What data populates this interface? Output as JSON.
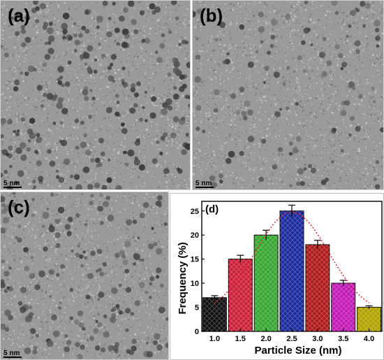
{
  "panels": {
    "a": {
      "label": "(a)",
      "scale_label": "5 nm"
    },
    "b": {
      "label": "(b)",
      "scale_label": "5 nm"
    },
    "c": {
      "label": "(c)",
      "scale_label": "5 nm"
    }
  },
  "chart_data": {
    "type": "bar",
    "panel_label": "(d)",
    "xlabel": "Particle Size (nm)",
    "ylabel": "Frequency (%)",
    "categories": [
      "1.0",
      "1.5",
      "2.0",
      "2.5",
      "3.0",
      "3.5",
      "4.0"
    ],
    "values": [
      7,
      15,
      20,
      25,
      18,
      10,
      5
    ],
    "errors": [
      0.4,
      0.8,
      1.0,
      1.2,
      0.9,
      0.6,
      0.3
    ],
    "ylim": [
      0,
      27
    ],
    "yticks": [
      0,
      5,
      10,
      15,
      20,
      25
    ],
    "bar_colors": [
      "#111111",
      "#cc1f3a",
      "#39a832",
      "#1b2a9e",
      "#b01a1a",
      "#c21ab5",
      "#b3a300"
    ],
    "fit_curve_color": "#e0202b",
    "grid": false,
    "legend": "none"
  }
}
